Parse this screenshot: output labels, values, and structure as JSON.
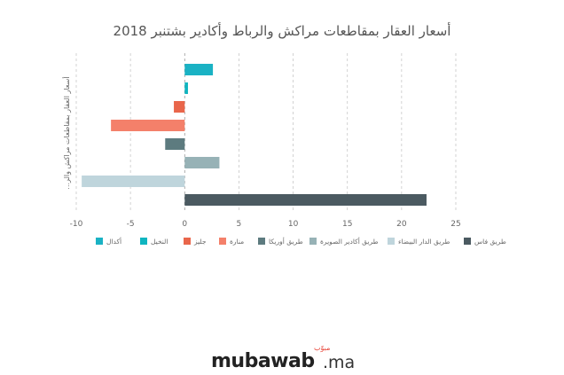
{
  "chart_data": {
    "type": "bar",
    "orientation": "horizontal",
    "title": "أسعار العقار بمقاطعات مراكش والرباط وأكادير بشتنبر 2018",
    "ylabel": "أسعار العقار بمقاطعات مراكش والر...",
    "xlim": [
      -10,
      25
    ],
    "xticks": [
      -10,
      -5,
      0,
      5,
      10,
      15,
      20,
      25
    ],
    "grid": true,
    "legend_position": "bottom",
    "categories": [
      "أكدال",
      "النخيل",
      "جليز",
      "منارة",
      "طريق أوريكا",
      "طريق أكادير الصويرة",
      "طريق الدار البيضاء",
      "طريق فاس"
    ],
    "values": [
      2.6,
      0.3,
      -1.0,
      -6.8,
      -1.8,
      3.2,
      -9.5,
      22.3
    ],
    "colors": [
      "#1ab2c4",
      "#0fb5c0",
      "#e9664b",
      "#f4806a",
      "#5d7b7f",
      "#97b2b6",
      "#bfd5dc",
      "#4b5a61"
    ]
  },
  "logo": {
    "main": "mubawab",
    "tld": ".ma",
    "arabic": "مبوّب"
  }
}
